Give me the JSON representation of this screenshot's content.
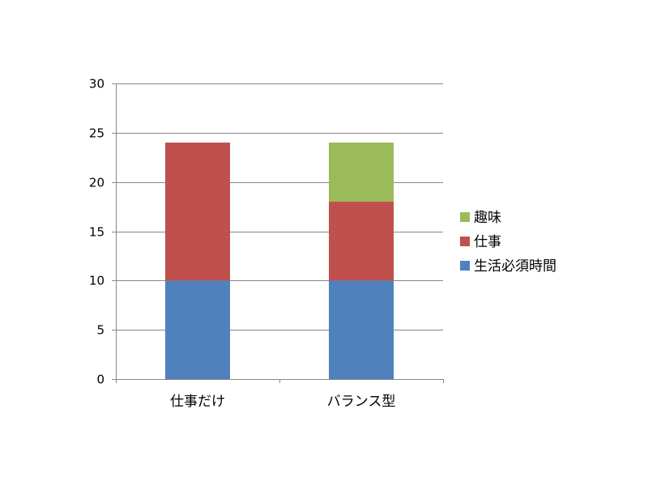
{
  "chart_data": {
    "type": "bar",
    "stacked": true,
    "title": "",
    "xlabel": "",
    "ylabel": "",
    "categories": [
      "仕事だけ",
      "バランス型"
    ],
    "series": [
      {
        "name": "生活必須時間",
        "values": [
          10,
          10
        ],
        "color": "#4f81bd"
      },
      {
        "name": "仕事",
        "values": [
          14,
          8
        ],
        "color": "#c0504d"
      },
      {
        "name": "趣味",
        "values": [
          0,
          6
        ],
        "color": "#9bbb59"
      }
    ],
    "ylim": [
      0,
      30
    ],
    "yticks": [
      0,
      5,
      10,
      15,
      20,
      25,
      30
    ],
    "grid": true,
    "legend_position": "right"
  }
}
